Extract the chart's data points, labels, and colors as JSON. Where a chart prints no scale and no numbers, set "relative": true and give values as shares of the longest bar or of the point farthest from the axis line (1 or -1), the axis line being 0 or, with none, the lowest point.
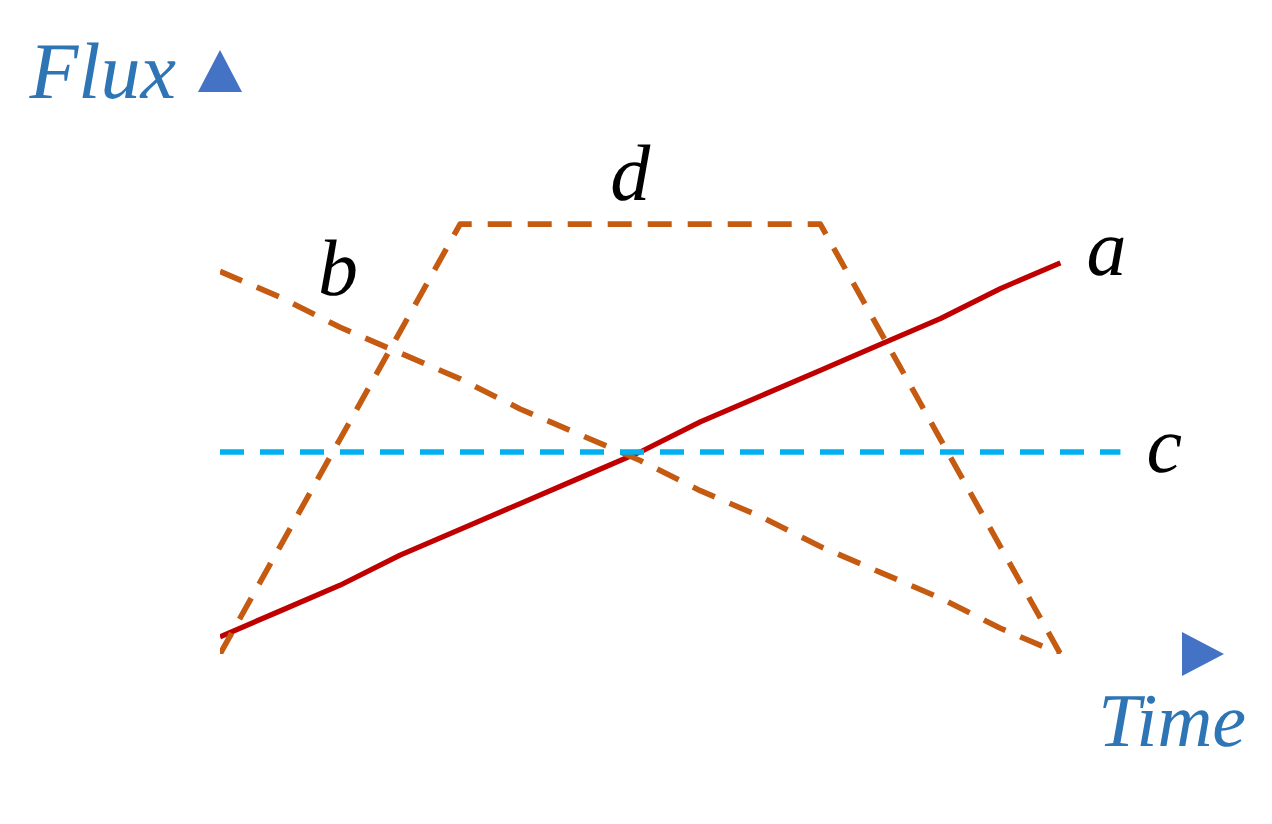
{
  "chart_data": {
    "type": "line",
    "relative": true,
    "xlabel": "Time",
    "ylabel": "Flux",
    "marker": "none",
    "categories": [
      null,
      null,
      null,
      null,
      null,
      null,
      null,
      null,
      null,
      null,
      null,
      null,
      null,
      null,
      null,
      null
    ],
    "series": [
      {
        "name": "a",
        "color": "#c00000",
        "line_style": "solid",
        "values": [
          0.04,
          0.1,
          0.16,
          0.23,
          0.29,
          0.35,
          0.41,
          0.47,
          0.54,
          0.6,
          0.66,
          0.72,
          0.78,
          0.85,
          0.91,
          null
        ]
      },
      {
        "name": "b",
        "color": "#c55a11",
        "line_style": "dashed",
        "values": [
          0.89,
          0.83,
          0.76,
          0.7,
          0.64,
          0.57,
          0.51,
          0.45,
          0.38,
          0.32,
          0.25,
          0.19,
          0.13,
          0.06,
          0,
          null
        ]
      },
      {
        "name": "c",
        "color": "#00b0f0",
        "line_style": "dashed",
        "values": [
          0.47,
          0.47,
          0.47,
          0.47,
          0.47,
          0.47,
          0.47,
          0.47,
          0.47,
          0.47,
          0.47,
          0.47,
          0.47,
          0.47,
          0.47,
          0.47
        ]
      },
      {
        "name": "d",
        "color": "#c55a11",
        "line_style": "dashed",
        "values": [
          0,
          0.25,
          0.5,
          0.75,
          1,
          1,
          1,
          1,
          1,
          1,
          1,
          0.75,
          0.5,
          0.25,
          0,
          null
        ]
      }
    ]
  }
}
